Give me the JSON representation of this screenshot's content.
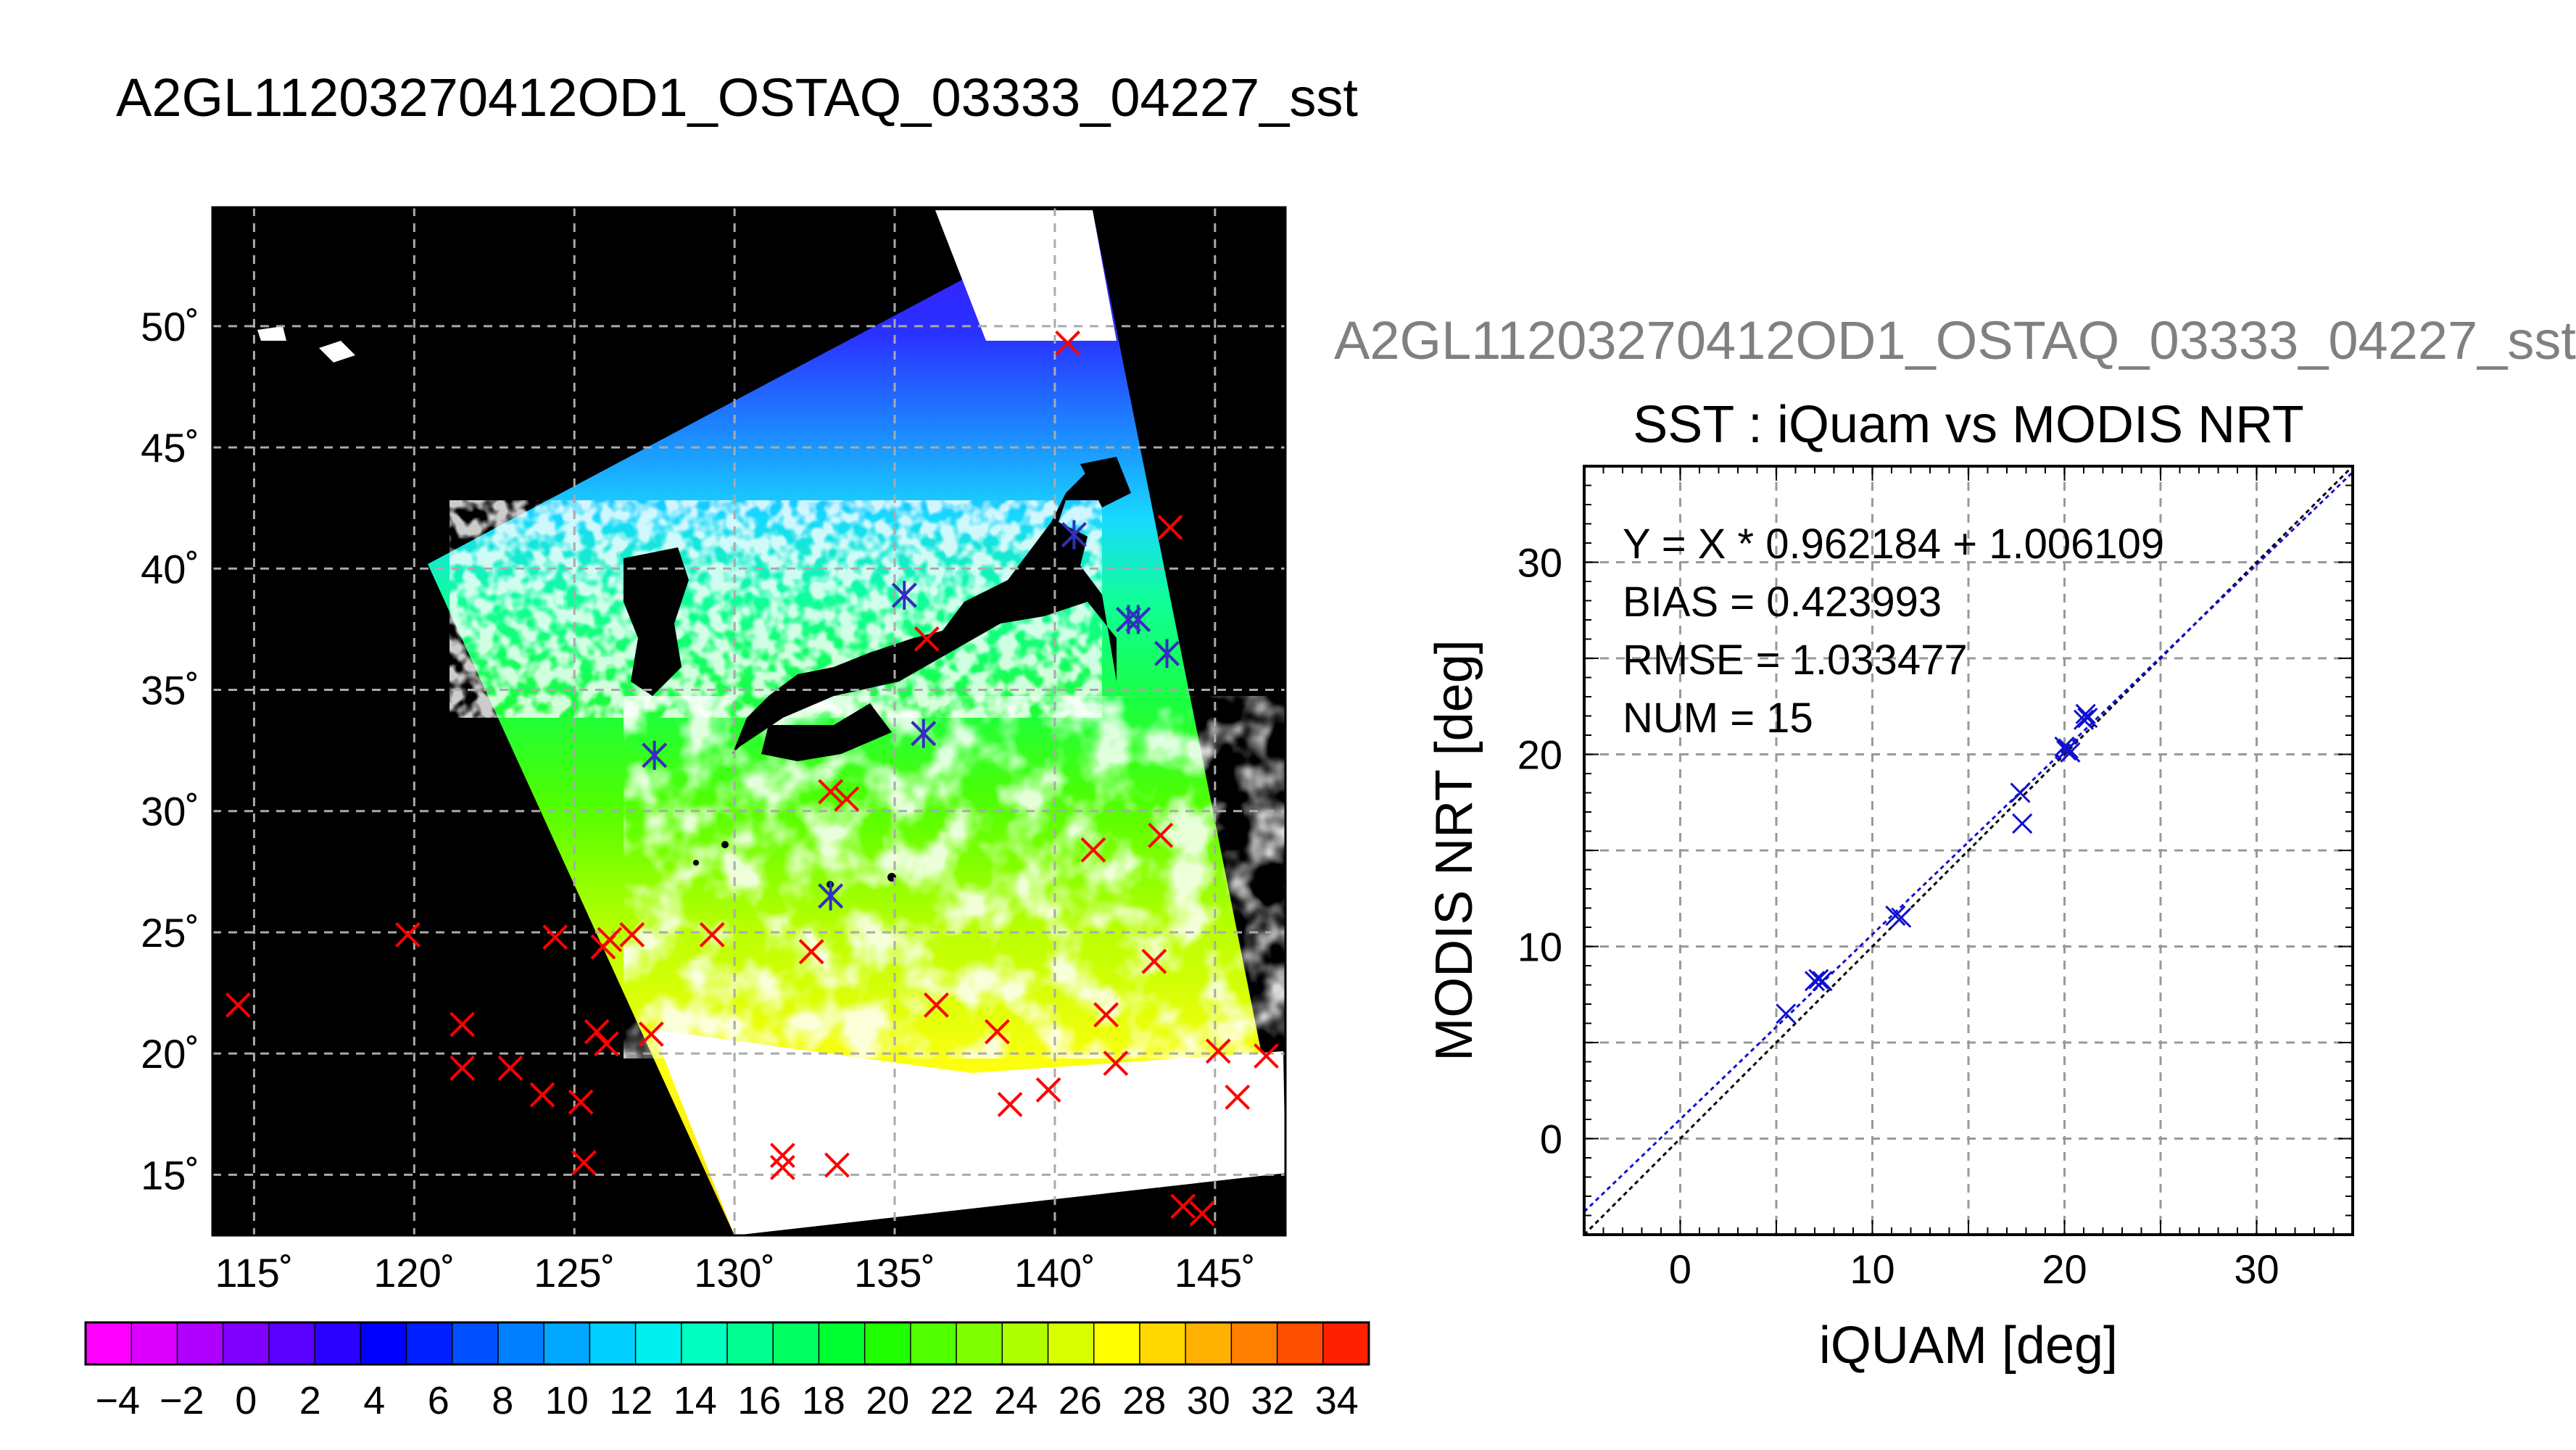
{
  "main_title": "A2GL11203270412OD1_OSTAQ_03333_04227_sst",
  "sub_title": "A2GL11203270412OD1_OSTAQ_03333_04227_sst",
  "colors": {
    "land": "#000000",
    "cloud": "#ffffff",
    "matchup_marker": "#ff0000",
    "highlight_marker": "#3030c0",
    "scatter_marker": "#1010d0",
    "fit_line": "#1010d0",
    "identity_line": "#000000",
    "grid": "#888888"
  },
  "chart_data": [
    {
      "type": "heatmap",
      "title": "",
      "xlabel": "",
      "ylabel": "",
      "x_ticks": [
        "115˚",
        "120˚",
        "125˚",
        "130˚",
        "135˚",
        "140˚",
        "145˚"
      ],
      "y_ticks": [
        "15˚",
        "20˚",
        "25˚",
        "30˚",
        "35˚",
        "40˚",
        "45˚",
        "50˚"
      ],
      "xlim": [
        113.7,
        147.2
      ],
      "ylim": [
        12.5,
        54.9
      ],
      "grid": true,
      "colorbar": {
        "range": [
          -5,
          35
        ],
        "tick_labels": [
          "−4",
          "−2",
          "0",
          "2",
          "4",
          "6",
          "8",
          "10",
          "12",
          "14",
          "16",
          "18",
          "20",
          "22",
          "24",
          "26",
          "28",
          "30",
          "32",
          "34"
        ],
        "colors": [
          "#ff00ff",
          "#dd00ff",
          "#b000ff",
          "#8000ff",
          "#5a00ff",
          "#2a00ff",
          "#0000ff",
          "#0020ff",
          "#0050ff",
          "#0080ff",
          "#00a8ff",
          "#00d0ff",
          "#00f0f0",
          "#00ffc0",
          "#00ff90",
          "#00ff60",
          "#00ff30",
          "#20ff00",
          "#50ff00",
          "#80ff00",
          "#b0ff00",
          "#d8ff00",
          "#ffff00",
          "#ffd800",
          "#ffb000",
          "#ff8000",
          "#ff5000",
          "#ff2000"
        ]
      },
      "matchups": [
        [
          114.5,
          22.0
        ],
        [
          119.8,
          24.9
        ],
        [
          121.5,
          21.2
        ],
        [
          121.5,
          19.4
        ],
        [
          123.0,
          19.4
        ],
        [
          124.0,
          18.3
        ],
        [
          124.4,
          24.8
        ],
        [
          125.2,
          18.0
        ],
        [
          125.3,
          15.5
        ],
        [
          125.7,
          20.9
        ],
        [
          126.0,
          20.4
        ],
        [
          125.9,
          24.4
        ],
        [
          126.1,
          24.7
        ],
        [
          126.8,
          24.9
        ],
        [
          127.4,
          20.8
        ],
        [
          127.5,
          32.3
        ],
        [
          129.3,
          24.9
        ],
        [
          131.5,
          15.8
        ],
        [
          131.5,
          15.3
        ],
        [
          132.4,
          24.2
        ],
        [
          133.0,
          30.8
        ],
        [
          133.0,
          26.5
        ],
        [
          133.2,
          15.4
        ],
        [
          133.5,
          30.5
        ],
        [
          135.3,
          38.9
        ],
        [
          135.9,
          33.2
        ],
        [
          136.0,
          37.1
        ],
        [
          136.3,
          22.0
        ],
        [
          138.2,
          20.9
        ],
        [
          138.6,
          17.9
        ],
        [
          139.8,
          18.5
        ],
        [
          140.4,
          49.3
        ],
        [
          140.6,
          41.4
        ],
        [
          141.2,
          28.4
        ],
        [
          141.6,
          21.6
        ],
        [
          141.9,
          19.6
        ],
        [
          142.3,
          37.9
        ],
        [
          142.6,
          37.9
        ],
        [
          143.1,
          23.8
        ],
        [
          143.3,
          29.0
        ],
        [
          143.5,
          36.5
        ],
        [
          143.6,
          41.7
        ],
        [
          144.0,
          13.7
        ],
        [
          144.6,
          13.4
        ],
        [
          145.1,
          20.1
        ],
        [
          145.7,
          18.2
        ],
        [
          146.6,
          19.9
        ]
      ],
      "highlighted": [
        [
          127.5,
          32.3
        ],
        [
          133.0,
          26.5
        ],
        [
          135.3,
          38.9
        ],
        [
          135.9,
          33.2
        ],
        [
          140.6,
          41.4
        ],
        [
          142.3,
          37.9
        ],
        [
          142.6,
          37.9
        ],
        [
          143.5,
          36.5
        ]
      ]
    },
    {
      "type": "scatter",
      "title": "SST : iQuam vs MODIS NRT",
      "xlabel": "iQUAM [deg]",
      "ylabel": "MODIS NRT [deg]",
      "xlim": [
        -5,
        35
      ],
      "ylim": [
        -5,
        35
      ],
      "x_ticks": [
        0,
        10,
        20,
        30
      ],
      "y_ticks": [
        0,
        10,
        20,
        30
      ],
      "grid": true,
      "annotations": [
        "Y = X * 0.962184 + 1.006109",
        "BIAS = 0.423993",
        "RMSE = 1.033477",
        "NUM = 15"
      ],
      "fit": {
        "slope": 0.962184,
        "intercept": 1.006109
      },
      "points": [
        [
          5.5,
          6.5
        ],
        [
          7.0,
          8.2
        ],
        [
          7.2,
          8.3
        ],
        [
          7.4,
          8.2
        ],
        [
          11.2,
          11.6
        ],
        [
          11.5,
          11.5
        ],
        [
          17.7,
          18.0
        ],
        [
          17.8,
          16.4
        ],
        [
          20.0,
          20.4
        ],
        [
          20.1,
          20.2
        ],
        [
          20.2,
          20.3
        ],
        [
          21.1,
          22.1
        ],
        [
          21.2,
          21.9
        ],
        [
          21.0,
          21.8
        ],
        [
          20.3,
          20.1
        ]
      ]
    }
  ]
}
